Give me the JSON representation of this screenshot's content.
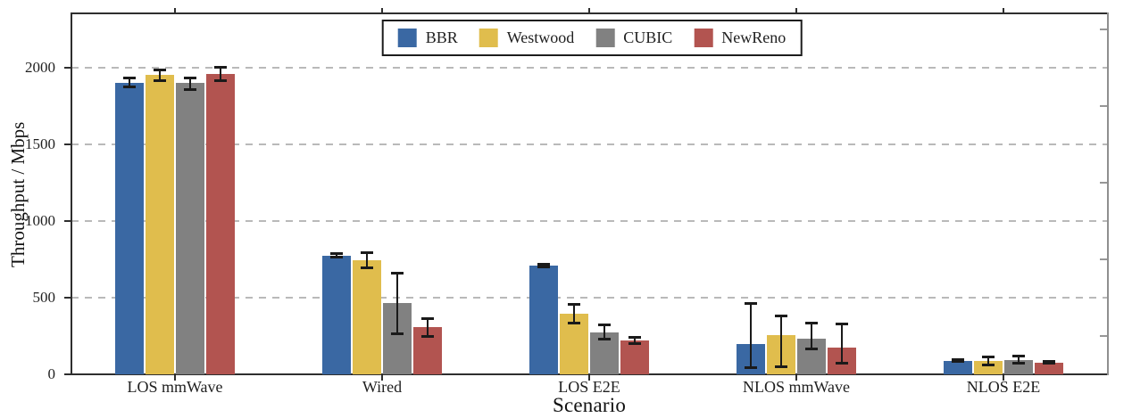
{
  "figure": {
    "background": "#ffffff",
    "axis_color": "#2e2e2e",
    "right_spine_color": "#8f8f8f",
    "grid_color": "#b9b9b9",
    "error_bar_color": "#1a1a1a"
  },
  "chart_data": {
    "type": "bar",
    "title": "",
    "xlabel": "Scenario",
    "ylabel": "Throughput / Mbps",
    "ylim": [
      0,
      2350
    ],
    "yticks": [
      0,
      500,
      1000,
      1500,
      2000
    ],
    "yticks_minor": [
      250,
      750,
      1250,
      1750,
      2250
    ],
    "grid": "horizontal dashed",
    "legend_position": "top-center",
    "error_bars": true,
    "categories": [
      "LOS mmWave",
      "Wired",
      "LOS E2E",
      "NLOS mmWave",
      "NLOS E2E"
    ],
    "series": [
      {
        "name": "BBR",
        "color": "#3A68A3",
        "values": [
          1905,
          775,
          710,
          195,
          90
        ],
        "err_low": [
          1878,
          764,
          702,
          45,
          84
        ],
        "err_high": [
          1932,
          786,
          718,
          465,
          96
        ]
      },
      {
        "name": "Westwood",
        "color": "#E0BD4D",
        "values": [
          1955,
          745,
          395,
          255,
          88
        ],
        "err_low": [
          1918,
          698,
          335,
          52,
          64
        ],
        "err_high": [
          1986,
          792,
          455,
          380,
          113
        ]
      },
      {
        "name": "CUBIC",
        "color": "#818181",
        "values": [
          1900,
          465,
          275,
          230,
          95
        ],
        "err_low": [
          1860,
          265,
          232,
          165,
          72
        ],
        "err_high": [
          1936,
          658,
          322,
          335,
          119
        ]
      },
      {
        "name": "NewReno",
        "color": "#B25450",
        "values": [
          1960,
          310,
          220,
          175,
          78
        ],
        "err_low": [
          1919,
          250,
          202,
          75,
          71
        ],
        "err_high": [
          2004,
          366,
          240,
          330,
          85
        ]
      }
    ]
  }
}
